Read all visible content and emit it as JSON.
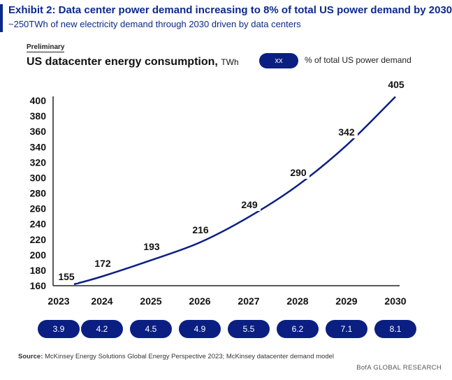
{
  "exhibit": {
    "title": "Exhibit 2: Data center power demand increasing to 8% of total US power demand by 2030",
    "subtitle": "~250TWh of new electricity demand through 2030 driven by data centers"
  },
  "preliminary_label": "Preliminary",
  "legend": {
    "pill_text": "xx",
    "label": "% of total US power demand"
  },
  "chart_data": {
    "type": "line",
    "title": "US datacenter energy consumption,",
    "unit": "TWh",
    "x": [
      "2023",
      "2024",
      "2025",
      "2026",
      "2027",
      "2028",
      "2029",
      "2030"
    ],
    "values": [
      155,
      172,
      193,
      216,
      249,
      290,
      342,
      405
    ],
    "value_labels": [
      "155",
      "172",
      "193",
      "216",
      "249",
      "290",
      "342",
      "405"
    ],
    "ylim": [
      160,
      400
    ],
    "yticks": [
      "160",
      "180",
      "200",
      "220",
      "240",
      "260",
      "280",
      "300",
      "320",
      "340",
      "360",
      "380",
      "400"
    ],
    "share_of_total": [
      "3.9",
      "4.2",
      "4.5",
      "4.9",
      "5.5",
      "6.2",
      "7.1",
      "8.1"
    ],
    "line_color": "#0b1f82"
  },
  "footer": {
    "source_label": "Source:",
    "source_text": "McKinsey Energy Solutions Global Energy Perspective 2023; McKinsey datacenter demand model",
    "brand": "BofA GLOBAL RESEARCH"
  }
}
